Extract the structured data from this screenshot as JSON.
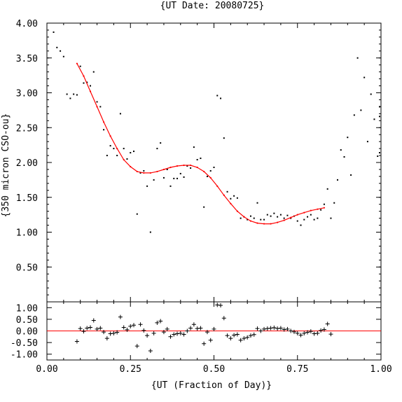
{
  "chart_data": {
    "type": "scatter",
    "title": "{UT Date: 20080725}",
    "xlabel": "{UT (Fraction of Day)}",
    "ylabel": "{350 micron CSO-ou}",
    "x_ticks": [
      "0.00",
      "0.25",
      "0.50",
      "0.75",
      "1.00"
    ],
    "xlim": [
      0.0,
      1.0
    ],
    "panels": [
      {
        "name": "main",
        "ylim": [
          0.0,
          4.0
        ],
        "y_ticks": [
          "0.50",
          "1.00",
          "1.50",
          "2.00",
          "2.50",
          "3.00",
          "3.50",
          "4.00"
        ],
        "points": [
          [
            0.02,
            3.87
          ],
          [
            0.03,
            3.65
          ],
          [
            0.04,
            3.6
          ],
          [
            0.05,
            3.52
          ],
          [
            0.06,
            2.98
          ],
          [
            0.07,
            2.92
          ],
          [
            0.08,
            2.98
          ],
          [
            0.09,
            2.97
          ],
          [
            0.1,
            3.38
          ],
          [
            0.11,
            3.14
          ],
          [
            0.12,
            3.15
          ],
          [
            0.13,
            3.1
          ],
          [
            0.14,
            3.3
          ],
          [
            0.15,
            2.87
          ],
          [
            0.16,
            2.8
          ],
          [
            0.17,
            2.47
          ],
          [
            0.18,
            2.1
          ],
          [
            0.19,
            2.24
          ],
          [
            0.2,
            2.2
          ],
          [
            0.21,
            2.1
          ],
          [
            0.22,
            2.7
          ],
          [
            0.23,
            2.2
          ],
          [
            0.24,
            2.05
          ],
          [
            0.25,
            2.14
          ],
          [
            0.26,
            2.16
          ],
          [
            0.27,
            1.26
          ],
          [
            0.28,
            1.85
          ],
          [
            0.29,
            1.88
          ],
          [
            0.3,
            1.66
          ],
          [
            0.31,
            1.0
          ],
          [
            0.32,
            1.75
          ],
          [
            0.33,
            2.2
          ],
          [
            0.34,
            2.28
          ],
          [
            0.35,
            1.78
          ],
          [
            0.36,
            1.9
          ],
          [
            0.37,
            1.66
          ],
          [
            0.38,
            1.77
          ],
          [
            0.39,
            1.77
          ],
          [
            0.4,
            1.84
          ],
          [
            0.41,
            1.79
          ],
          [
            0.42,
            1.95
          ],
          [
            0.43,
            1.92
          ],
          [
            0.44,
            2.22
          ],
          [
            0.45,
            2.04
          ],
          [
            0.46,
            2.06
          ],
          [
            0.47,
            1.36
          ],
          [
            0.48,
            1.8
          ],
          [
            0.49,
            1.88
          ],
          [
            0.5,
            1.93
          ],
          [
            0.51,
            2.96
          ],
          [
            0.52,
            2.92
          ],
          [
            0.53,
            2.35
          ],
          [
            0.54,
            1.58
          ],
          [
            0.55,
            1.48
          ],
          [
            0.56,
            1.52
          ],
          [
            0.57,
            1.49
          ],
          [
            0.58,
            1.2
          ],
          [
            0.59,
            1.22
          ],
          [
            0.6,
            1.18
          ],
          [
            0.61,
            1.23
          ],
          [
            0.62,
            1.2
          ],
          [
            0.63,
            1.42
          ],
          [
            0.64,
            1.18
          ],
          [
            0.65,
            1.18
          ],
          [
            0.66,
            1.25
          ],
          [
            0.67,
            1.23
          ],
          [
            0.68,
            1.27
          ],
          [
            0.69,
            1.22
          ],
          [
            0.7,
            1.25
          ],
          [
            0.71,
            1.2
          ],
          [
            0.72,
            1.24
          ],
          [
            0.73,
            1.2
          ],
          [
            0.74,
            1.23
          ],
          [
            0.75,
            1.16
          ],
          [
            0.76,
            1.1
          ],
          [
            0.77,
            1.18
          ],
          [
            0.78,
            1.22
          ],
          [
            0.79,
            1.25
          ],
          [
            0.8,
            1.18
          ],
          [
            0.81,
            1.2
          ],
          [
            0.82,
            1.32
          ],
          [
            0.83,
            1.4
          ],
          [
            0.84,
            1.62
          ],
          [
            0.85,
            1.2
          ],
          [
            0.86,
            1.42
          ],
          [
            0.87,
            1.75
          ],
          [
            0.88,
            2.18
          ],
          [
            0.89,
            2.08
          ],
          [
            0.9,
            2.36
          ],
          [
            0.91,
            1.82
          ],
          [
            0.92,
            2.68
          ],
          [
            0.93,
            3.5
          ],
          [
            0.94,
            2.75
          ],
          [
            0.95,
            3.22
          ],
          [
            0.96,
            2.3
          ],
          [
            0.97,
            2.98
          ],
          [
            0.98,
            2.62
          ],
          [
            0.99,
            2.09
          ],
          [
            1.0,
            2.66
          ],
          [
            1.01,
            2.8
          ],
          [
            1.02,
            2.14
          ]
        ],
        "fit": {
          "color": "#ff0000",
          "x": [
            0.09,
            0.11,
            0.13,
            0.15,
            0.17,
            0.19,
            0.21,
            0.23,
            0.25,
            0.27,
            0.29,
            0.31,
            0.33,
            0.35,
            0.37,
            0.39,
            0.41,
            0.43,
            0.45,
            0.47,
            0.49,
            0.51,
            0.53,
            0.55,
            0.57,
            0.59,
            0.61,
            0.63,
            0.65,
            0.67,
            0.69,
            0.71,
            0.73,
            0.75,
            0.77,
            0.79,
            0.81,
            0.83
          ],
          "y": [
            3.42,
            3.24,
            3.02,
            2.8,
            2.58,
            2.38,
            2.2,
            2.04,
            1.94,
            1.87,
            1.85,
            1.85,
            1.87,
            1.9,
            1.93,
            1.95,
            1.96,
            1.96,
            1.93,
            1.87,
            1.78,
            1.66,
            1.53,
            1.41,
            1.3,
            1.22,
            1.16,
            1.13,
            1.12,
            1.12,
            1.14,
            1.17,
            1.21,
            1.25,
            1.28,
            1.31,
            1.33,
            1.35
          ]
        }
      },
      {
        "name": "residuals",
        "ylim": [
          -1.25,
          1.25
        ],
        "y_ticks": [
          "1.00",
          "0.50",
          "0.00",
          "-0.50",
          "-1.00"
        ],
        "zero_line_color": "#ff0000",
        "points": [
          [
            0.09,
            -0.45
          ],
          [
            0.1,
            0.1
          ],
          [
            0.11,
            -0.02
          ],
          [
            0.12,
            0.12
          ],
          [
            0.13,
            0.15
          ],
          [
            0.14,
            0.45
          ],
          [
            0.15,
            0.08
          ],
          [
            0.16,
            0.12
          ],
          [
            0.17,
            -0.05
          ],
          [
            0.18,
            -0.32
          ],
          [
            0.19,
            -0.12
          ],
          [
            0.2,
            -0.1
          ],
          [
            0.21,
            -0.06
          ],
          [
            0.22,
            0.6
          ],
          [
            0.23,
            0.15
          ],
          [
            0.24,
            0.05
          ],
          [
            0.25,
            0.2
          ],
          [
            0.26,
            0.25
          ],
          [
            0.27,
            -0.65
          ],
          [
            0.28,
            0.28
          ],
          [
            0.29,
            0.02
          ],
          [
            0.3,
            -0.2
          ],
          [
            0.31,
            -0.86
          ],
          [
            0.32,
            -0.1
          ],
          [
            0.33,
            0.35
          ],
          [
            0.34,
            0.42
          ],
          [
            0.35,
            -0.05
          ],
          [
            0.36,
            0.08
          ],
          [
            0.37,
            -0.25
          ],
          [
            0.38,
            -0.15
          ],
          [
            0.39,
            -0.12
          ],
          [
            0.4,
            -0.1
          ],
          [
            0.41,
            -0.15
          ],
          [
            0.42,
            0.0
          ],
          [
            0.43,
            0.12
          ],
          [
            0.44,
            0.28
          ],
          [
            0.45,
            0.1
          ],
          [
            0.46,
            0.12
          ],
          [
            0.47,
            -0.55
          ],
          [
            0.48,
            -0.05
          ],
          [
            0.49,
            -0.4
          ],
          [
            0.5,
            0.08
          ],
          [
            0.51,
            1.12
          ],
          [
            0.52,
            1.1
          ],
          [
            0.53,
            0.55
          ],
          [
            0.54,
            -0.2
          ],
          [
            0.55,
            -0.32
          ],
          [
            0.56,
            -0.18
          ],
          [
            0.57,
            -0.15
          ],
          [
            0.58,
            -0.4
          ],
          [
            0.59,
            -0.32
          ],
          [
            0.6,
            -0.28
          ],
          [
            0.61,
            -0.2
          ],
          [
            0.62,
            -0.16
          ],
          [
            0.63,
            0.1
          ],
          [
            0.64,
            0.0
          ],
          [
            0.65,
            0.08
          ],
          [
            0.66,
            0.1
          ],
          [
            0.67,
            0.12
          ],
          [
            0.68,
            0.14
          ],
          [
            0.69,
            0.1
          ],
          [
            0.7,
            0.12
          ],
          [
            0.71,
            0.06
          ],
          [
            0.72,
            0.08
          ],
          [
            0.73,
            0.0
          ],
          [
            0.74,
            -0.04
          ],
          [
            0.75,
            -0.1
          ],
          [
            0.76,
            -0.18
          ],
          [
            0.77,
            -0.1
          ],
          [
            0.78,
            -0.06
          ],
          [
            0.79,
            -0.02
          ],
          [
            0.8,
            -0.12
          ],
          [
            0.81,
            -0.1
          ],
          [
            0.82,
            0.02
          ],
          [
            0.83,
            0.06
          ],
          [
            0.84,
            0.3
          ],
          [
            0.85,
            -0.14
          ]
        ]
      }
    ]
  }
}
